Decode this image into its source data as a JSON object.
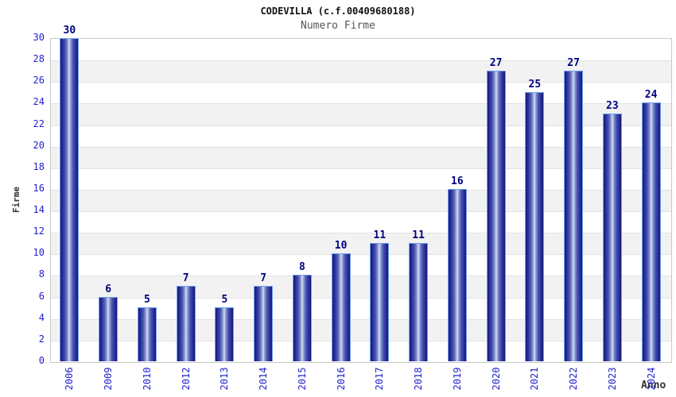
{
  "chart_data": {
    "type": "bar",
    "title": "CODEVILLA (c.f.00409680188)",
    "subtitle": "Numero Firme",
    "xlabel": "Anno",
    "ylabel": "Firme",
    "categories": [
      "2006",
      "2009",
      "2010",
      "2012",
      "2013",
      "2014",
      "2015",
      "2016",
      "2017",
      "2018",
      "2019",
      "2020",
      "2021",
      "2022",
      "2023",
      "2024"
    ],
    "values": [
      30,
      6,
      5,
      7,
      5,
      7,
      8,
      10,
      11,
      11,
      16,
      27,
      25,
      27,
      23,
      24
    ],
    "ylim": [
      0,
      30
    ],
    "ytick_step": 2,
    "grid": true,
    "legend_position": "none",
    "band_colors": [
      "#ffffff",
      "#f2f2f2"
    ],
    "gridline_color": "#e2e2e2",
    "plot_border_color": "#c8c8c8",
    "bar_border_color": "#74a2ec",
    "bar_dark_color": "#181880",
    "bar_light_color": "#d8def4",
    "tick_label_color": "#2222cc",
    "value_label_color": "#000080",
    "title_color": "#111111",
    "subtitle_color": "#555555",
    "axis_title_color": "#333333"
  }
}
